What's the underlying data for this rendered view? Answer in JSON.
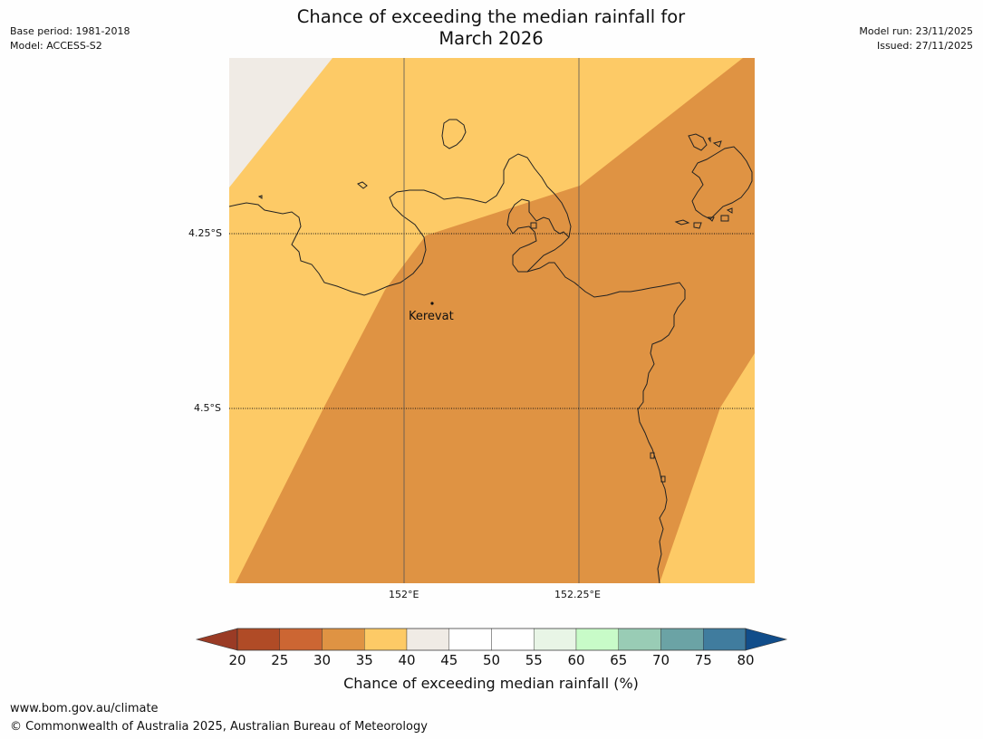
{
  "header": {
    "title_line1": "Chance of exceeding the median rainfall for",
    "title_line2": "March 2026",
    "base_period": "Base period: 1981-2018",
    "model": "Model: ACCESS-S2",
    "model_run": "Model run: 23/11/2025",
    "issued": "Issued: 27/11/2025"
  },
  "map": {
    "place_label": "Kerevat",
    "lat_labels": [
      "4.25°S",
      "4.5°S"
    ],
    "lon_labels": [
      "152°E",
      "152.25°E"
    ],
    "colors": {
      "band_40_45": "#f0ebe5",
      "band_35_40": "#fdca66",
      "band_30_35": "#df9343",
      "coastline": "#222222"
    }
  },
  "colorbar": {
    "ticks": [
      "20",
      "25",
      "30",
      "35",
      "40",
      "45",
      "50",
      "55",
      "60",
      "65",
      "70",
      "75",
      "80"
    ],
    "label": "Chance of exceeding median rainfall (%)",
    "colors": [
      "#b04b26",
      "#cc6633",
      "#df9343",
      "#fdca66",
      "#f0ebe5",
      "#ffffff",
      "#ffffff",
      "#e8f5e6",
      "#c8fbc8",
      "#99ccb5",
      "#6ba3a5",
      "#407c9e"
    ],
    "under_color": "#9a3b25",
    "over_color": "#114d8a"
  },
  "footer": {
    "url": "www.bom.gov.au/climate",
    "copyright": "© Commonwealth of Australia 2025, Australian Bureau of Meteorology"
  }
}
